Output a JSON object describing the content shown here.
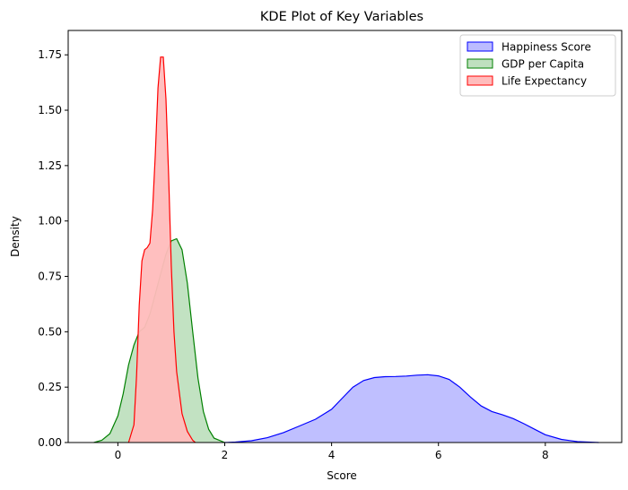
{
  "chart_data": {
    "type": "area",
    "title": "KDE Plot of Key Variables",
    "xlabel": "Score",
    "ylabel": "Density",
    "xlim": [
      -0.93,
      9.43
    ],
    "ylim": [
      0,
      1.86
    ],
    "xticks": [
      0,
      2,
      4,
      6,
      8
    ],
    "yticks": [
      0.0,
      0.25,
      0.5,
      0.75,
      1.0,
      1.25,
      1.5,
      1.75
    ],
    "ytick_labels": [
      "0.00",
      "0.25",
      "0.50",
      "0.75",
      "1.00",
      "1.25",
      "1.50",
      "1.75"
    ],
    "legend": "top-right",
    "series": [
      {
        "name": "Happiness Score",
        "edge": "#0000ff",
        "fill": "#bcbcff",
        "points": [
          [
            2.0,
            0.0
          ],
          [
            2.2,
            0.002
          ],
          [
            2.5,
            0.008
          ],
          [
            2.8,
            0.022
          ],
          [
            3.1,
            0.045
          ],
          [
            3.4,
            0.075
          ],
          [
            3.7,
            0.105
          ],
          [
            4.0,
            0.15
          ],
          [
            4.2,
            0.2
          ],
          [
            4.4,
            0.25
          ],
          [
            4.6,
            0.28
          ],
          [
            4.8,
            0.293
          ],
          [
            5.0,
            0.297
          ],
          [
            5.2,
            0.298
          ],
          [
            5.4,
            0.3
          ],
          [
            5.6,
            0.304
          ],
          [
            5.8,
            0.306
          ],
          [
            6.0,
            0.301
          ],
          [
            6.2,
            0.285
          ],
          [
            6.4,
            0.25
          ],
          [
            6.6,
            0.205
          ],
          [
            6.8,
            0.165
          ],
          [
            7.0,
            0.14
          ],
          [
            7.2,
            0.125
          ],
          [
            7.4,
            0.108
          ],
          [
            7.6,
            0.085
          ],
          [
            7.8,
            0.06
          ],
          [
            8.0,
            0.035
          ],
          [
            8.3,
            0.014
          ],
          [
            8.6,
            0.004
          ],
          [
            9.0,
            0.0
          ]
        ]
      },
      {
        "name": "GDP per Capita",
        "edge": "#008000",
        "fill": "#bfe0bf",
        "points": [
          [
            -0.45,
            0.0
          ],
          [
            -0.3,
            0.01
          ],
          [
            -0.15,
            0.04
          ],
          [
            0.0,
            0.12
          ],
          [
            0.1,
            0.22
          ],
          [
            0.2,
            0.35
          ],
          [
            0.3,
            0.44
          ],
          [
            0.4,
            0.5
          ],
          [
            0.5,
            0.52
          ],
          [
            0.6,
            0.58
          ],
          [
            0.7,
            0.67
          ],
          [
            0.8,
            0.76
          ],
          [
            0.9,
            0.85
          ],
          [
            1.0,
            0.91
          ],
          [
            1.1,
            0.92
          ],
          [
            1.2,
            0.87
          ],
          [
            1.3,
            0.72
          ],
          [
            1.4,
            0.5
          ],
          [
            1.5,
            0.29
          ],
          [
            1.6,
            0.14
          ],
          [
            1.7,
            0.06
          ],
          [
            1.8,
            0.02
          ],
          [
            2.0,
            0.0
          ]
        ]
      },
      {
        "name": "Life Expectancy",
        "edge": "#ff0000",
        "fill": "#ffbcbc",
        "points": [
          [
            0.2,
            0.0
          ],
          [
            0.3,
            0.08
          ],
          [
            0.35,
            0.3
          ],
          [
            0.4,
            0.62
          ],
          [
            0.45,
            0.82
          ],
          [
            0.5,
            0.87
          ],
          [
            0.55,
            0.88
          ],
          [
            0.6,
            0.9
          ],
          [
            0.65,
            1.05
          ],
          [
            0.7,
            1.3
          ],
          [
            0.75,
            1.6
          ],
          [
            0.8,
            1.74
          ],
          [
            0.85,
            1.74
          ],
          [
            0.9,
            1.55
          ],
          [
            0.95,
            1.2
          ],
          [
            1.0,
            0.8
          ],
          [
            1.05,
            0.5
          ],
          [
            1.1,
            0.32
          ],
          [
            1.2,
            0.13
          ],
          [
            1.3,
            0.05
          ],
          [
            1.4,
            0.01
          ],
          [
            1.45,
            0.0
          ]
        ]
      }
    ]
  }
}
